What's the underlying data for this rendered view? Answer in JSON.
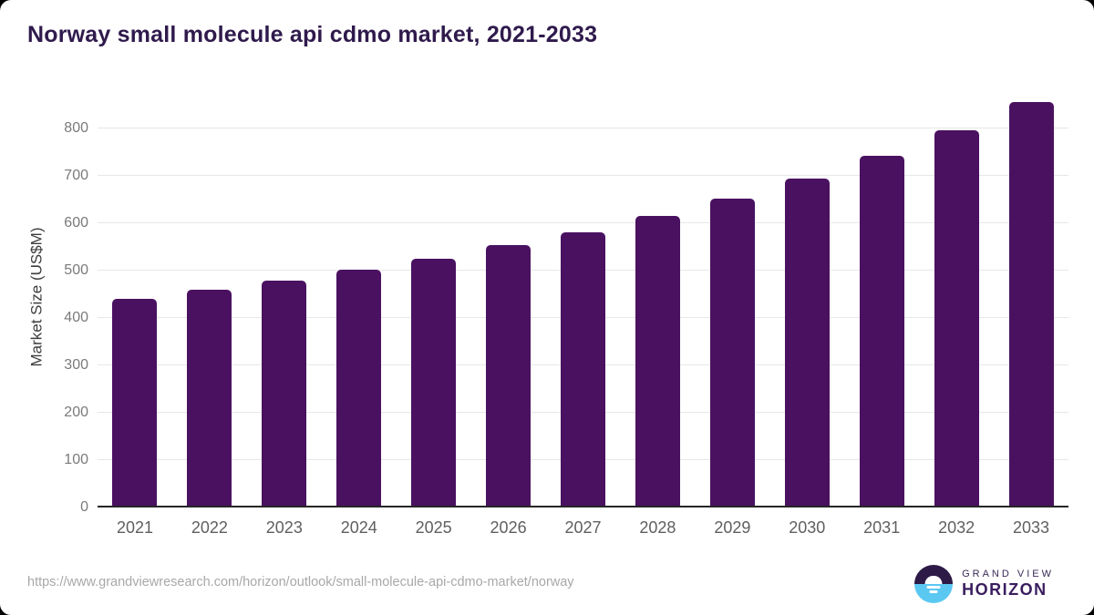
{
  "header": {
    "title": "Norway small molecule api cdmo market, 2021-2033"
  },
  "chart_data": {
    "type": "bar",
    "title": "Norway small molecule api cdmo market, 2021-2033",
    "categories": [
      "2021",
      "2022",
      "2023",
      "2024",
      "2025",
      "2026",
      "2027",
      "2028",
      "2029",
      "2030",
      "2031",
      "2032",
      "2033"
    ],
    "values": [
      440,
      459,
      479,
      501,
      524,
      553,
      581,
      616,
      652,
      694,
      742,
      795,
      856
    ],
    "xlabel": "",
    "ylabel": "Market Size (US$M)",
    "ylim": [
      0,
      888
    ],
    "yticks": [
      0,
      100,
      200,
      300,
      400,
      500,
      600,
      700,
      800
    ],
    "grid": "horizontal-light",
    "legend": "none",
    "bar_color": "#4a1161"
  },
  "footer": {
    "source_url": "https://www.grandviewresearch.com/horizon/outlook/small-molecule-api-cdmo-market/norway",
    "logo": {
      "top": "GRAND VIEW",
      "bottom": "HORIZON"
    }
  },
  "colors": {
    "title": "#2f1a4c",
    "bar": "#4a1161",
    "gridline": "#e7e7e7",
    "axis_line": "#262626",
    "y_tick": "#7a7a7a",
    "x_tick": "#5f5f5f",
    "source_text": "#a8a8a8",
    "logo_blue": "#5bc8f2",
    "logo_dark": "#2d1a47"
  }
}
